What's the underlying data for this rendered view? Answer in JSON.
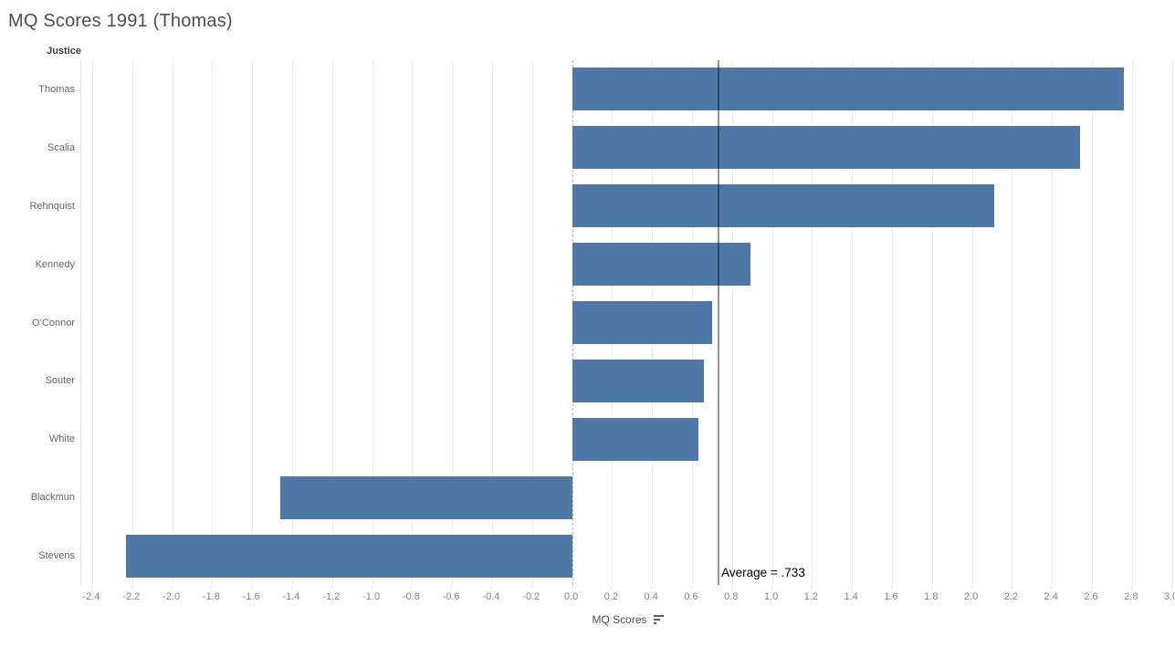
{
  "title": "MQ Scores 1991 (Thomas)",
  "header": {
    "row_label": "Justice"
  },
  "x_axis": {
    "title": "MQ Scores",
    "tick_min": -2.4,
    "tick_max": 3.0,
    "tick_step": 0.2
  },
  "reference_line": {
    "label": "Average = .733",
    "value": 0.733
  },
  "colors": {
    "bar": "#4e79a7",
    "grid": "#ececec",
    "zero_line": "#b5b5b5",
    "reference_line": "#949494",
    "pane_border": "#e0e0e0",
    "title_text": "#4e4e4e",
    "header_text": "#3f3f3f",
    "label_text": "#646464",
    "axis_text": "#808080",
    "annotation_text": "#000000"
  },
  "chart_data": {
    "type": "bar",
    "orientation": "horizontal",
    "title": "MQ Scores 1991 (Thomas)",
    "xlabel": "MQ Scores",
    "ylabel": "Justice",
    "categories": [
      "Thomas",
      "Scalia",
      "Rehnquist",
      "Kennedy",
      "O’Connor",
      "Souter",
      "White",
      "Blackmun",
      "Stevens"
    ],
    "values": [
      2.76,
      2.54,
      2.11,
      0.89,
      0.7,
      0.66,
      0.63,
      -1.46,
      -2.23
    ],
    "xlim": [
      -2.46,
      3.02
    ],
    "xtick_range": [
      -2.4,
      3.0
    ],
    "xtick_step": 0.2,
    "grid": true,
    "legend": false,
    "sort": "descending",
    "reference_line": {
      "label": "Average = .733",
      "value": 0.733
    },
    "bar_color": "#4e79a7"
  }
}
